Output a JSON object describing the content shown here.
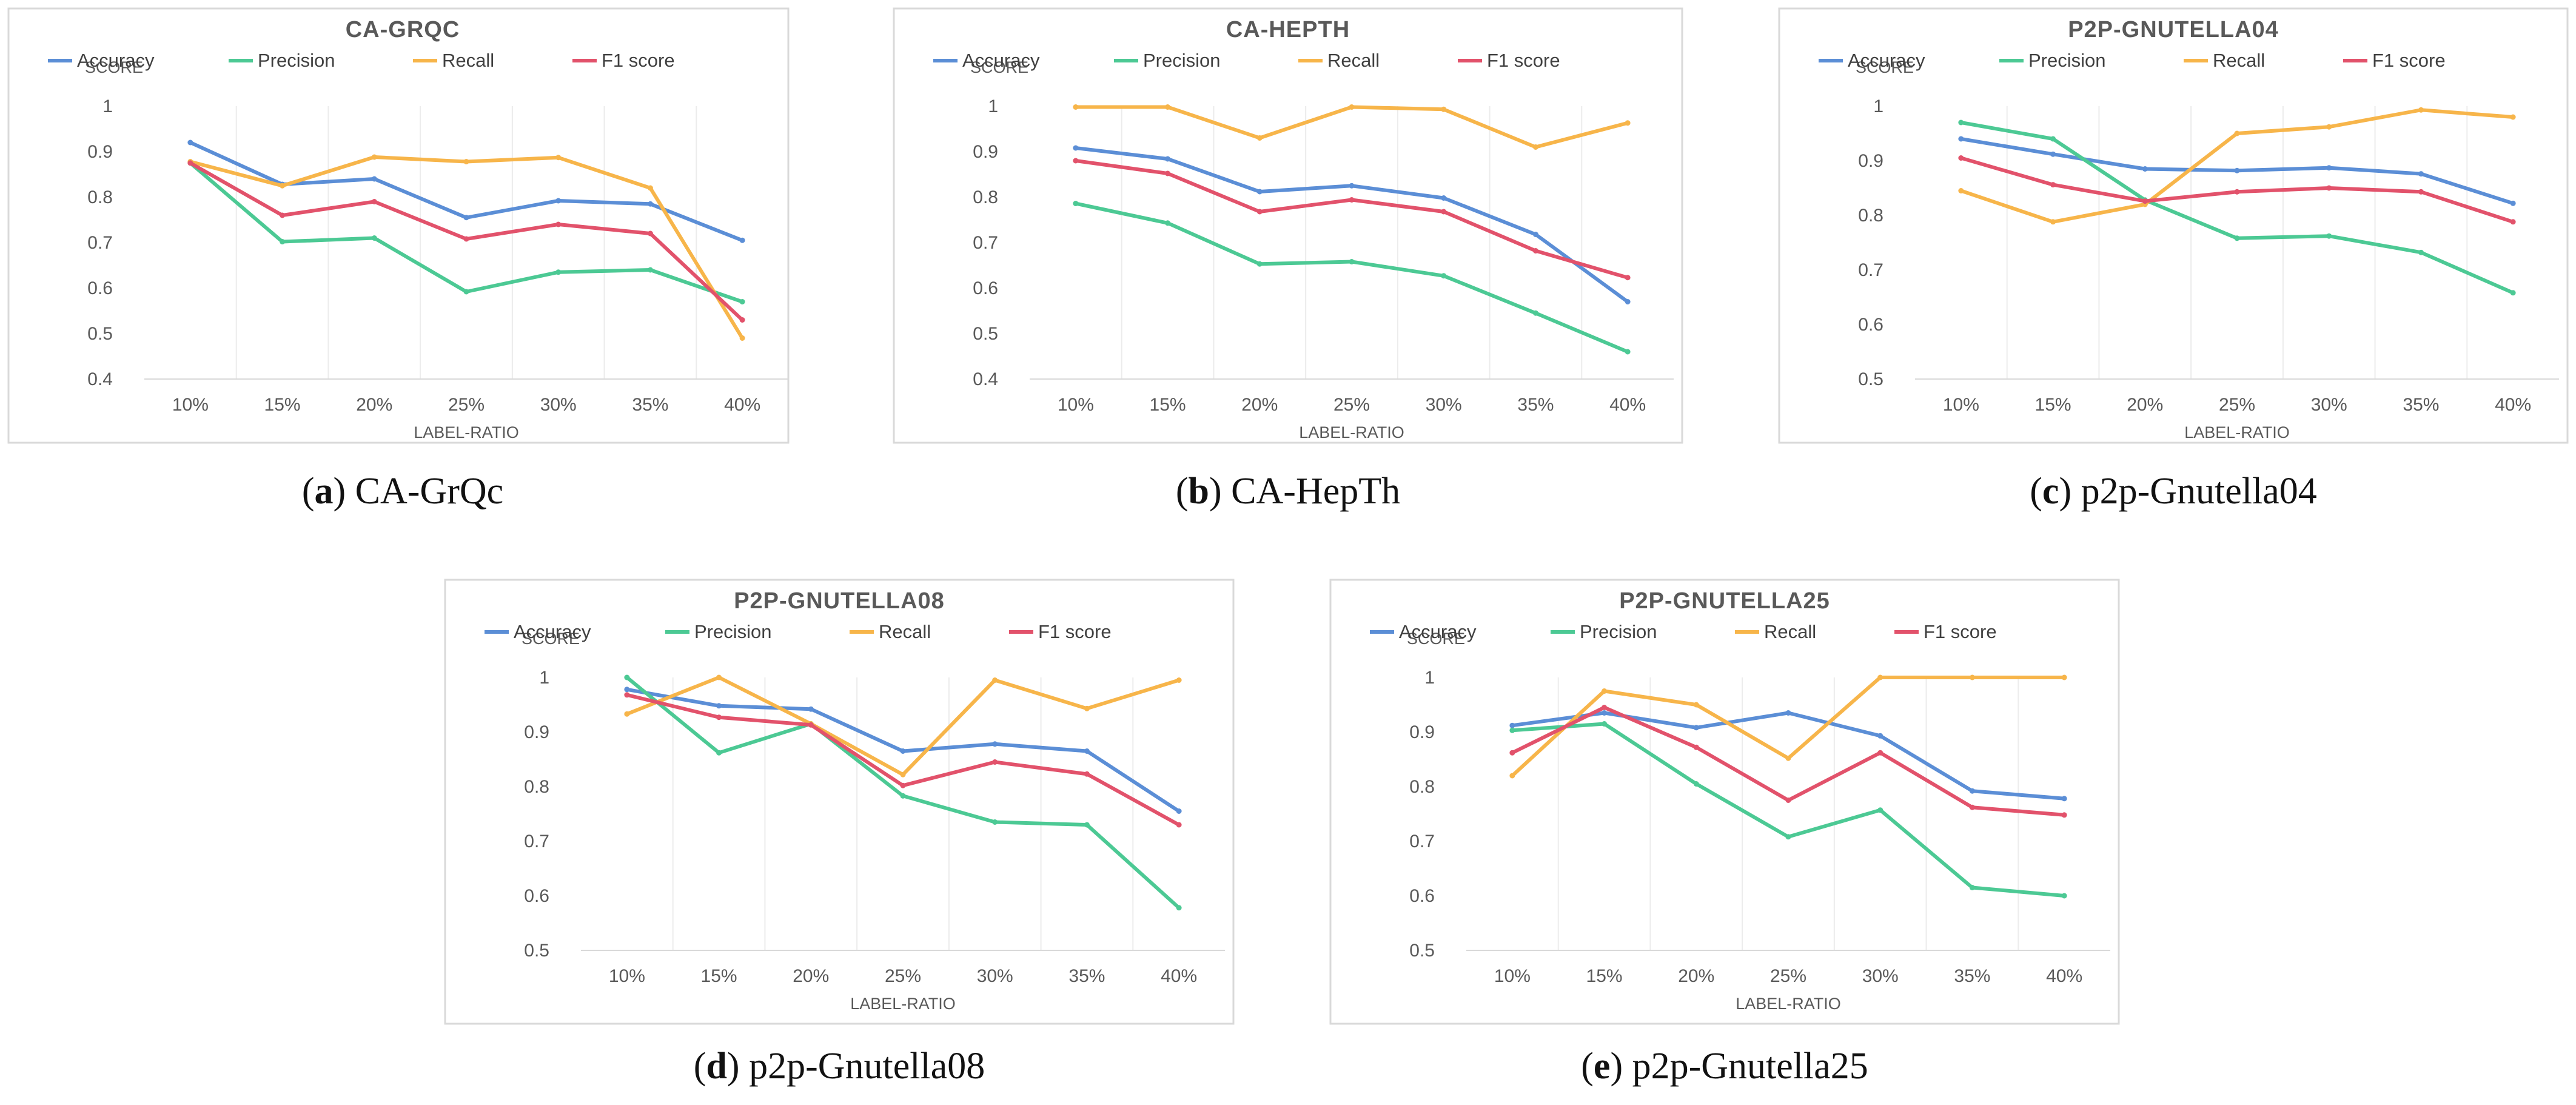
{
  "colors": {
    "accuracy": "#5b8ed6",
    "precision": "#4cc994",
    "recall": "#f7b54a",
    "f1": "#e2526b"
  },
  "chart_data": [
    {
      "type": "line",
      "panel_letter": "a",
      "caption": "CA-GrQc",
      "title": "CA-GRQC",
      "ylabel": "SCORE",
      "xlabel": "LABEL-RATIO",
      "categories": [
        "10%",
        "15%",
        "20%",
        "25%",
        "30%",
        "35%",
        "40%"
      ],
      "ylim": [
        0.4,
        1
      ],
      "yticks": [
        0.4,
        0.5,
        0.6,
        0.7,
        0.8,
        0.9,
        1
      ],
      "ytick_labels": [
        "0.4",
        "0.5",
        "0.6",
        "0.7",
        "0.8",
        "0.9",
        "1"
      ],
      "legend": "top",
      "series": [
        {
          "name": "Accuracy",
          "key": "accuracy",
          "values": [
            0.92,
            0.828,
            0.84,
            0.755,
            0.792,
            0.785,
            0.705
          ]
        },
        {
          "name": "Precision",
          "key": "precision",
          "values": [
            0.875,
            0.702,
            0.71,
            0.592,
            0.635,
            0.64,
            0.57
          ]
        },
        {
          "name": "Recall",
          "key": "recall",
          "values": [
            0.878,
            0.825,
            0.888,
            0.878,
            0.887,
            0.82,
            0.49
          ]
        },
        {
          "name": "F1 score",
          "key": "f1",
          "values": [
            0.875,
            0.76,
            0.79,
            0.708,
            0.74,
            0.72,
            0.53
          ]
        }
      ]
    },
    {
      "type": "line",
      "panel_letter": "b",
      "caption": "CA-HepTh",
      "title": "CA-HEPTH",
      "ylabel": "SCORE",
      "xlabel": "LABEL-RATIO",
      "categories": [
        "10%",
        "15%",
        "20%",
        "25%",
        "30%",
        "35%",
        "40%"
      ],
      "ylim": [
        0.4,
        1
      ],
      "yticks": [
        0.4,
        0.5,
        0.6,
        0.7,
        0.8,
        0.9,
        1
      ],
      "ytick_labels": [
        "0.4",
        "0.5",
        "0.6",
        "0.7",
        "0.8",
        "0.9",
        "1"
      ],
      "legend": "top",
      "series": [
        {
          "name": "Accuracy",
          "key": "accuracy",
          "values": [
            0.908,
            0.884,
            0.812,
            0.825,
            0.798,
            0.718,
            0.57
          ]
        },
        {
          "name": "Precision",
          "key": "precision",
          "values": [
            0.786,
            0.743,
            0.653,
            0.658,
            0.627,
            0.545,
            0.46
          ]
        },
        {
          "name": "Recall",
          "key": "recall",
          "values": [
            0.998,
            0.998,
            0.93,
            0.998,
            0.993,
            0.91,
            0.963
          ]
        },
        {
          "name": "F1 score",
          "key": "f1",
          "values": [
            0.88,
            0.852,
            0.768,
            0.794,
            0.768,
            0.682,
            0.623
          ]
        }
      ]
    },
    {
      "type": "line",
      "panel_letter": "c",
      "caption": "p2p-Gnutella04",
      "title": "P2P-GNUTELLA04",
      "ylabel": "SCORE",
      "xlabel": "LABEL-RATIO",
      "categories": [
        "10%",
        "15%",
        "20%",
        "25%",
        "30%",
        "35%",
        "40%"
      ],
      "ylim": [
        0.5,
        1
      ],
      "yticks": [
        0.5,
        0.6,
        0.7,
        0.8,
        0.9,
        1
      ],
      "ytick_labels": [
        "0.5",
        "0.6",
        "0.7",
        "0.8",
        "0.9",
        "1"
      ],
      "legend": "top",
      "series": [
        {
          "name": "Accuracy",
          "key": "accuracy",
          "values": [
            0.94,
            0.912,
            0.885,
            0.882,
            0.887,
            0.876,
            0.822
          ]
        },
        {
          "name": "Precision",
          "key": "precision",
          "values": [
            0.97,
            0.94,
            0.828,
            0.758,
            0.762,
            0.732,
            0.658
          ]
        },
        {
          "name": "Recall",
          "key": "recall",
          "values": [
            0.845,
            0.788,
            0.82,
            0.95,
            0.962,
            0.993,
            0.98
          ]
        },
        {
          "name": "F1 score",
          "key": "f1",
          "values": [
            0.905,
            0.856,
            0.826,
            0.843,
            0.85,
            0.843,
            0.788
          ]
        }
      ]
    },
    {
      "type": "line",
      "panel_letter": "d",
      "caption": "p2p-Gnutella08",
      "title": "P2P-GNUTELLA08",
      "ylabel": "SCORE",
      "xlabel": "LABEL-RATIO",
      "categories": [
        "10%",
        "15%",
        "20%",
        "25%",
        "30%",
        "35%",
        "40%"
      ],
      "ylim": [
        0.5,
        1
      ],
      "yticks": [
        0.5,
        0.6,
        0.7,
        0.8,
        0.9,
        1
      ],
      "ytick_labels": [
        "0.5",
        "0.6",
        "0.7",
        "0.8",
        "0.9",
        "1"
      ],
      "legend": "top",
      "series": [
        {
          "name": "Accuracy",
          "key": "accuracy",
          "values": [
            0.978,
            0.948,
            0.942,
            0.865,
            0.878,
            0.865,
            0.755
          ]
        },
        {
          "name": "Precision",
          "key": "precision",
          "values": [
            1.0,
            0.862,
            0.915,
            0.783,
            0.735,
            0.73,
            0.578
          ]
        },
        {
          "name": "Recall",
          "key": "recall",
          "values": [
            0.933,
            1.0,
            0.915,
            0.822,
            0.995,
            0.943,
            0.995
          ]
        },
        {
          "name": "F1 score",
          "key": "f1",
          "values": [
            0.968,
            0.927,
            0.913,
            0.802,
            0.845,
            0.823,
            0.73
          ]
        }
      ]
    },
    {
      "type": "line",
      "panel_letter": "e",
      "caption": "p2p-Gnutella25",
      "title": "P2P-GNUTELLA25",
      "ylabel": "SCORE",
      "xlabel": "LABEL-RATIO",
      "categories": [
        "10%",
        "15%",
        "20%",
        "25%",
        "30%",
        "35%",
        "40%"
      ],
      "ylim": [
        0.5,
        1
      ],
      "yticks": [
        0.5,
        0.6,
        0.7,
        0.8,
        0.9,
        1
      ],
      "ytick_labels": [
        "0.5",
        "0.6",
        "0.7",
        "0.8",
        "0.9",
        "1"
      ],
      "legend": "top",
      "series": [
        {
          "name": "Accuracy",
          "key": "accuracy",
          "values": [
            0.912,
            0.935,
            0.908,
            0.935,
            0.893,
            0.792,
            0.778
          ]
        },
        {
          "name": "Precision",
          "key": "precision",
          "values": [
            0.903,
            0.915,
            0.805,
            0.708,
            0.757,
            0.615,
            0.6
          ]
        },
        {
          "name": "Recall",
          "key": "recall",
          "values": [
            0.82,
            0.975,
            0.95,
            0.852,
            1.0,
            1.0,
            1.0
          ]
        },
        {
          "name": "F1 score",
          "key": "f1",
          "values": [
            0.862,
            0.945,
            0.872,
            0.775,
            0.862,
            0.762,
            0.748
          ]
        }
      ]
    }
  ]
}
